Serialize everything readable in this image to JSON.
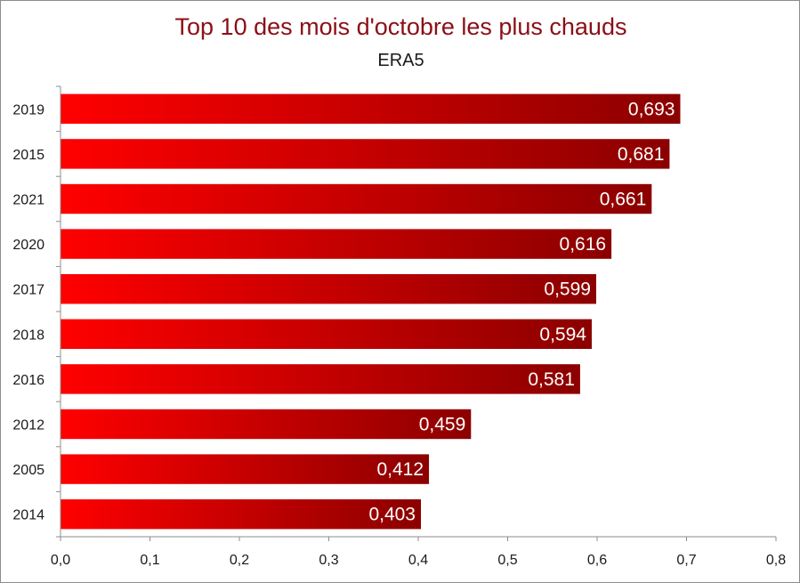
{
  "chart_data": {
    "type": "bar",
    "orientation": "horizontal",
    "title": "Top 10 des mois d'octobre les plus chauds",
    "subtitle": "ERA5",
    "categories": [
      "2019",
      "2015",
      "2021",
      "2020",
      "2017",
      "2018",
      "2016",
      "2012",
      "2005",
      "2014"
    ],
    "values": [
      0.693,
      0.681,
      0.661,
      0.616,
      0.599,
      0.594,
      0.581,
      0.459,
      0.412,
      0.403
    ],
    "value_labels": [
      "0,693",
      "0,681",
      "0,661",
      "0,616",
      "0,599",
      "0,594",
      "0,581",
      "0,459",
      "0,412",
      "0,403"
    ],
    "xlim": [
      0,
      0.8
    ],
    "x_ticks": [
      0,
      0.1,
      0.2,
      0.3,
      0.4,
      0.5,
      0.6,
      0.7,
      0.8
    ],
    "x_tick_labels": [
      "0,0",
      "0,1",
      "0,2",
      "0,3",
      "0,4",
      "0,5",
      "0,6",
      "0,7",
      "0,8"
    ],
    "xlabel": "",
    "ylabel": "",
    "grid": false,
    "legend": "none",
    "bar_gradient": [
      "#ff0000",
      "#8b0000"
    ],
    "title_color": "#8b0f16"
  }
}
